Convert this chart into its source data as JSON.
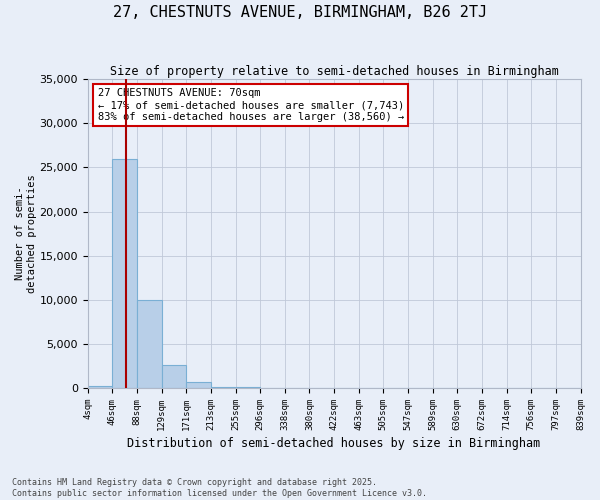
{
  "title": "27, CHESTNUTS AVENUE, BIRMINGHAM, B26 2TJ",
  "subtitle": "Size of property relative to semi-detached houses in Birmingham",
  "xlabel": "Distribution of semi-detached houses by size in Birmingham",
  "ylabel": "Number of semi-\ndetached properties",
  "bin_labels": [
    "4sqm",
    "46sqm",
    "88sqm",
    "129sqm",
    "171sqm",
    "213sqm",
    "255sqm",
    "296sqm",
    "338sqm",
    "380sqm",
    "422sqm",
    "463sqm",
    "505sqm",
    "547sqm",
    "589sqm",
    "630sqm",
    "672sqm",
    "714sqm",
    "756sqm",
    "797sqm",
    "839sqm"
  ],
  "bar_heights": [
    200,
    26000,
    10000,
    2600,
    700,
    150,
    70,
    0,
    0,
    0,
    0,
    0,
    0,
    0,
    0,
    0,
    0,
    0,
    0,
    0
  ],
  "bin_edges": [
    4,
    46,
    88,
    129,
    171,
    213,
    255,
    296,
    338,
    380,
    422,
    463,
    505,
    547,
    589,
    630,
    672,
    714,
    756,
    797,
    839
  ],
  "bar_color": "#b8cfe8",
  "bar_edge_color": "#7aafd4",
  "property_sqm": 70,
  "vline_color": "#aa0000",
  "annotation_title": "27 CHESTNUTS AVENUE: 70sqm",
  "annotation_line2": "← 17% of semi-detached houses are smaller (7,743)",
  "annotation_line3": "83% of semi-detached houses are larger (38,560) →",
  "annotation_box_color": "#cc0000",
  "ylim": [
    0,
    35000
  ],
  "yticks": [
    0,
    5000,
    10000,
    15000,
    20000,
    25000,
    30000,
    35000
  ],
  "footer1": "Contains HM Land Registry data © Crown copyright and database right 2025.",
  "footer2": "Contains public sector information licensed under the Open Government Licence v3.0.",
  "bg_color": "#e8eef8",
  "plot_bg_color": "#e8eef8"
}
